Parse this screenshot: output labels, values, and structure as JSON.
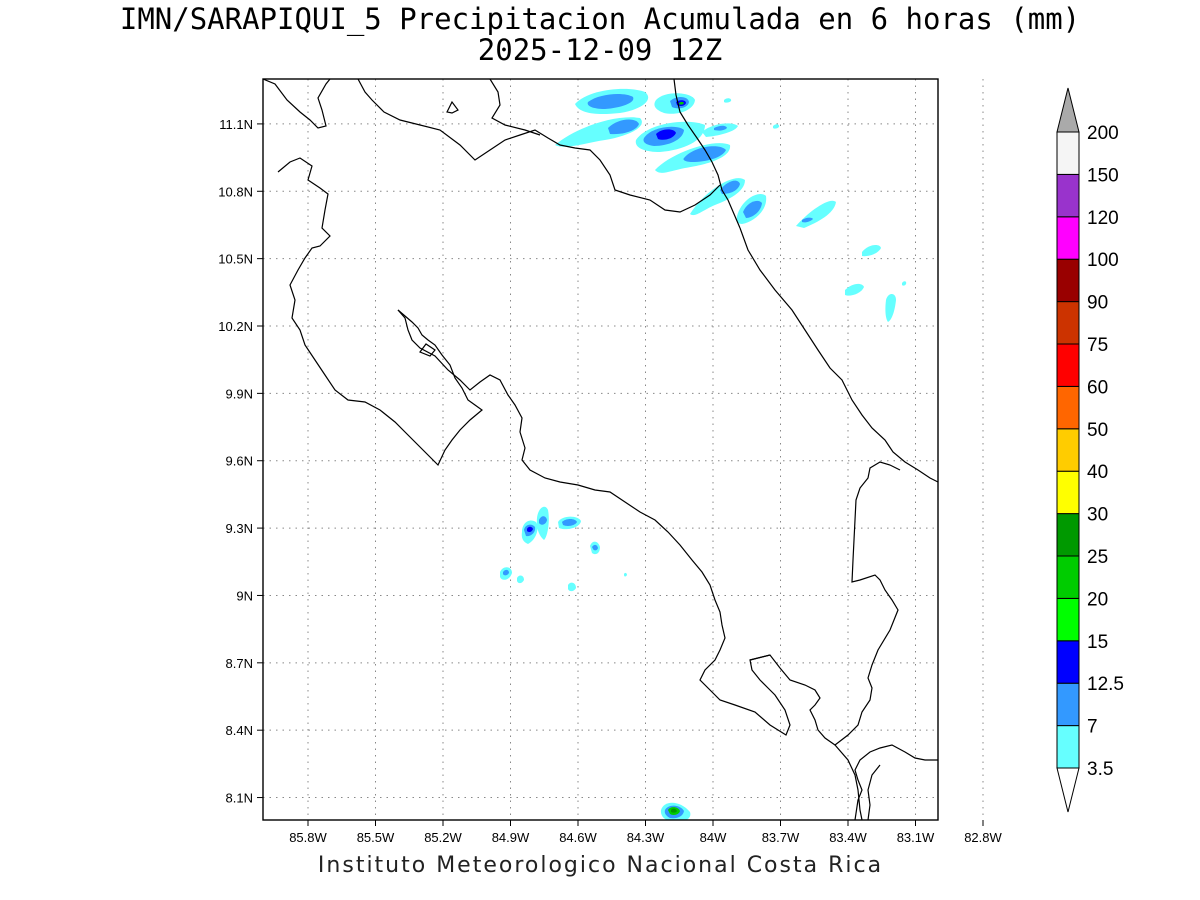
{
  "title": {
    "line1": "IMN/SARAPIQUI_5 Precipitacion Acumulada en 6 horas (mm)",
    "line2": "2025-12-09 12Z"
  },
  "footer": "Instituto Meteorologico Nacional Costa Rica",
  "map": {
    "lon_range": [
      -86.0,
      -83.0
    ],
    "lat_range": [
      8.0,
      11.3
    ],
    "lon_ticks": [
      {
        "value": -85.8,
        "label": "85.8W"
      },
      {
        "value": -85.5,
        "label": "85.5W"
      },
      {
        "value": -85.2,
        "label": "85.2W"
      },
      {
        "value": -84.9,
        "label": "84.9W"
      },
      {
        "value": -84.6,
        "label": "84.6W"
      },
      {
        "value": -84.3,
        "label": "84.3W"
      },
      {
        "value": -84.0,
        "label": "84W"
      },
      {
        "value": -83.7,
        "label": "83.7W"
      },
      {
        "value": -83.4,
        "label": "83.4W"
      },
      {
        "value": -83.1,
        "label": "83.1W"
      },
      {
        "value": -82.8,
        "label": "82.8W"
      }
    ],
    "lat_ticks": [
      {
        "value": 11.1,
        "label": "11.1N"
      },
      {
        "value": 10.8,
        "label": "10.8N"
      },
      {
        "value": 10.5,
        "label": "10.5N"
      },
      {
        "value": 10.2,
        "label": "10.2N"
      },
      {
        "value": 9.9,
        "label": "9.9N"
      },
      {
        "value": 9.6,
        "label": "9.6N"
      },
      {
        "value": 9.3,
        "label": "9.3N"
      },
      {
        "value": 9.0,
        "label": "9N"
      },
      {
        "value": 8.7,
        "label": "8.7N"
      },
      {
        "value": 8.4,
        "label": "8.4N"
      },
      {
        "value": 8.1,
        "label": "8.1N"
      }
    ],
    "grid": true
  },
  "colorbar": {
    "levels": [
      {
        "label": "3.5",
        "color": "#66ffff"
      },
      {
        "label": "7",
        "color": "#3399ff"
      },
      {
        "label": "12.5",
        "color": "#0000ff"
      },
      {
        "label": "15",
        "color": "#00ff00"
      },
      {
        "label": "20",
        "color": "#00cc00"
      },
      {
        "label": "25",
        "color": "#009900"
      },
      {
        "label": "30",
        "color": "#ffff00"
      },
      {
        "label": "40",
        "color": "#ffcc00"
      },
      {
        "label": "50",
        "color": "#ff6600"
      },
      {
        "label": "60",
        "color": "#ff0000"
      },
      {
        "label": "75",
        "color": "#cc3300"
      },
      {
        "label": "90",
        "color": "#990000"
      },
      {
        "label": "100",
        "color": "#ff00ff"
      },
      {
        "label": "120",
        "color": "#9933cc"
      },
      {
        "label": "150",
        "color": "#f5f5f5"
      },
      {
        "label": "200",
        "color": "#aaaaaa"
      }
    ]
  }
}
